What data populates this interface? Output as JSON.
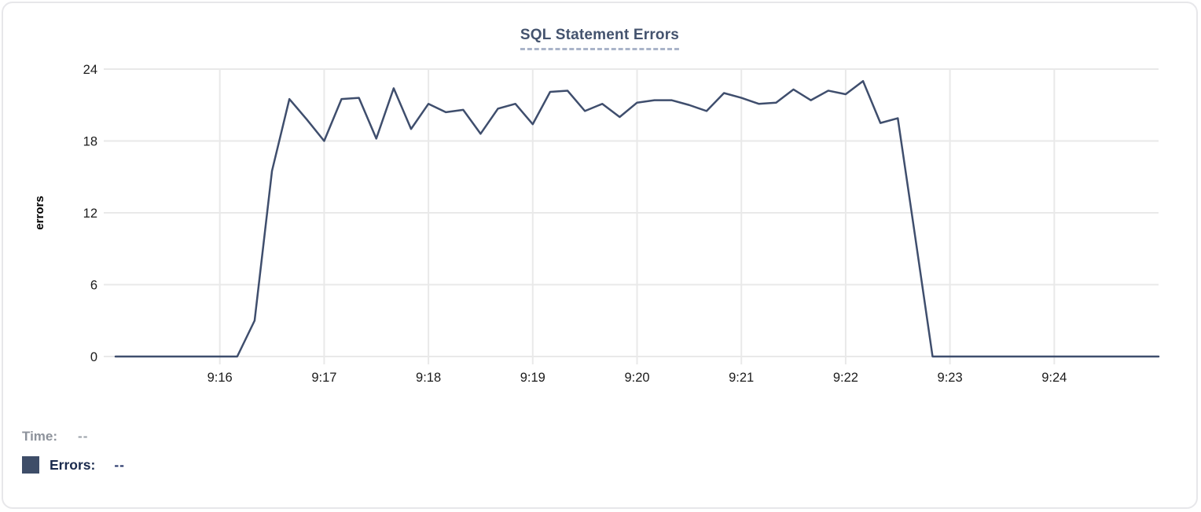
{
  "card": {
    "title": "SQL Statement Errors"
  },
  "colors": {
    "line": "#3f4e6d",
    "grid": "#e9e9e9",
    "title": "#44536e",
    "title_underline": "#aab4c9",
    "swatch": "#3e4d68",
    "time_label": "#8d929b",
    "errors_label": "#1b2b4e",
    "card_border": "#e7e7ea"
  },
  "tooltip": {
    "time_label": "Time:",
    "time_value": "--",
    "errors_label": "Errors:",
    "errors_value": "--"
  },
  "chart_data": {
    "type": "line",
    "title": "SQL Statement Errors",
    "xlabel": "",
    "ylabel": "errors",
    "series_name": "Errors",
    "ylim": [
      0,
      24
    ],
    "yticks": [
      0,
      6,
      12,
      18,
      24
    ],
    "xlim": [
      "9:15:00",
      "9:25:00"
    ],
    "xticks": [
      "9:16",
      "9:17",
      "9:18",
      "9:19",
      "9:20",
      "9:21",
      "9:22",
      "9:23",
      "9:24"
    ],
    "grid": true,
    "legend_position": "bottom-left",
    "x": [
      "9:15:00",
      "9:15:10",
      "9:15:20",
      "9:15:30",
      "9:15:40",
      "9:15:50",
      "9:16:00",
      "9:16:10",
      "9:16:20",
      "9:16:30",
      "9:16:40",
      "9:16:50",
      "9:17:00",
      "9:17:10",
      "9:17:20",
      "9:17:30",
      "9:17:40",
      "9:17:50",
      "9:18:00",
      "9:18:10",
      "9:18:20",
      "9:18:30",
      "9:18:40",
      "9:18:50",
      "9:19:00",
      "9:19:10",
      "9:19:20",
      "9:19:30",
      "9:19:40",
      "9:19:50",
      "9:20:00",
      "9:20:10",
      "9:20:20",
      "9:20:30",
      "9:20:40",
      "9:20:50",
      "9:21:00",
      "9:21:10",
      "9:21:20",
      "9:21:30",
      "9:21:40",
      "9:21:50",
      "9:22:00",
      "9:22:10",
      "9:22:20",
      "9:22:30",
      "9:22:40",
      "9:22:50",
      "9:23:00",
      "9:23:10",
      "9:23:20",
      "9:23:30",
      "9:23:40",
      "9:23:50",
      "9:24:00",
      "9:24:10",
      "9:24:20",
      "9:24:30",
      "9:24:40",
      "9:24:50",
      "9:25:00"
    ],
    "values": [
      0,
      0,
      0,
      0,
      0,
      0,
      0,
      0,
      3,
      15.5,
      21.5,
      19.8,
      18,
      21.5,
      21.6,
      18.2,
      22.4,
      19,
      21.1,
      20.4,
      20.6,
      18.6,
      20.7,
      21.1,
      19.4,
      22.1,
      22.2,
      20.5,
      21.1,
      20,
      21.2,
      21.4,
      21.4,
      21,
      20.5,
      22,
      21.6,
      21.1,
      21.2,
      22.3,
      21.4,
      22.2,
      21.9,
      23,
      19.5,
      19.9,
      10,
      0,
      0,
      0,
      0,
      0,
      0,
      0,
      0,
      0,
      0,
      0,
      0,
      0,
      0
    ]
  }
}
